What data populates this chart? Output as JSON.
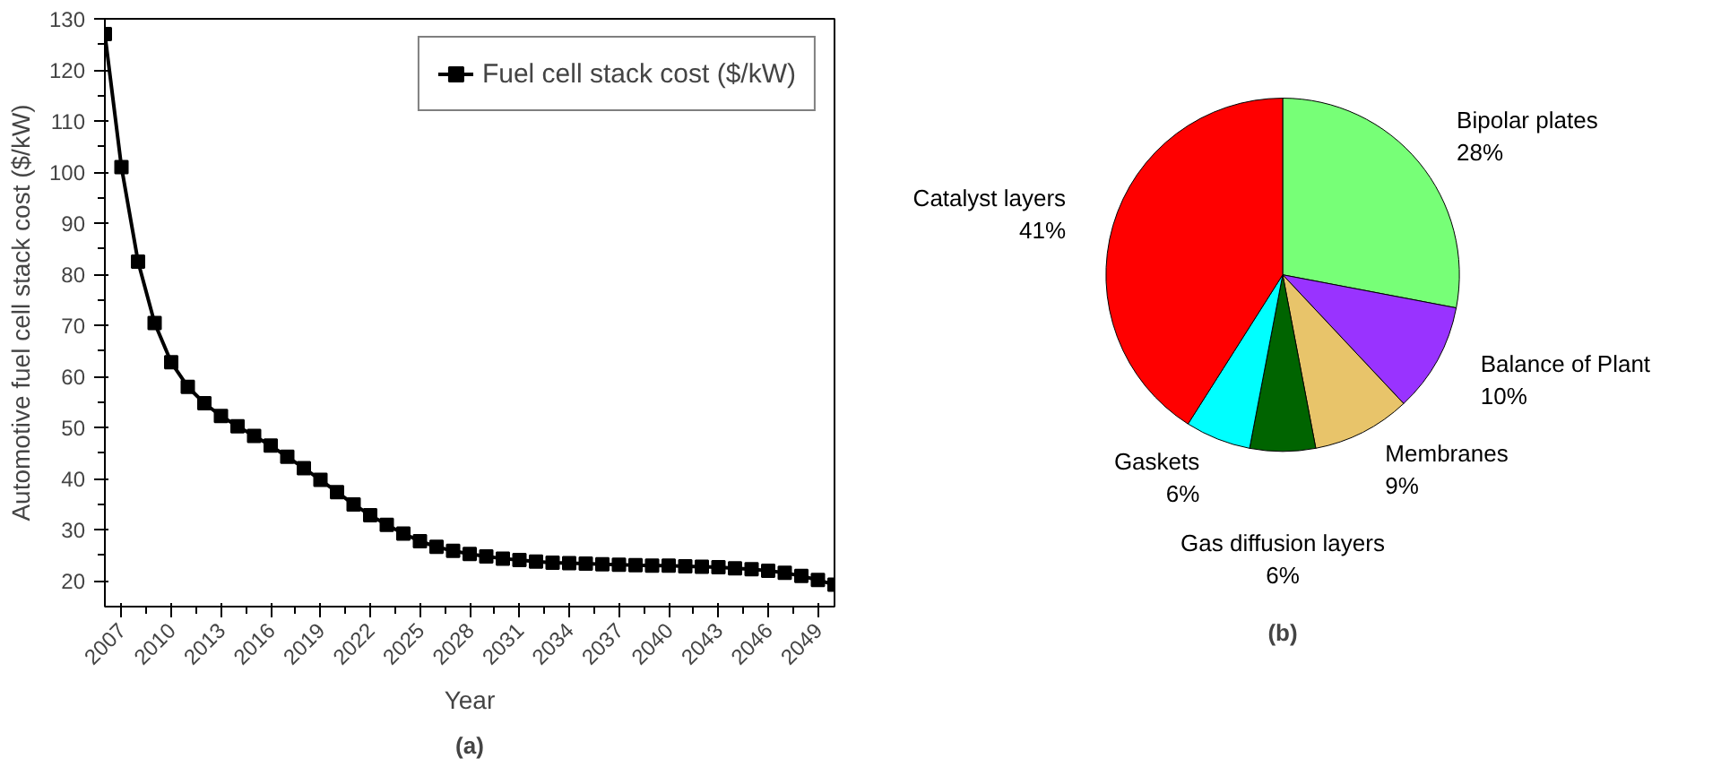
{
  "chart_data": [
    {
      "type": "line",
      "xlabel": "Year",
      "ylabel": "Automotive fuel cell stack cost ($/kW)",
      "annotations": [
        "(a)"
      ],
      "x": [
        2006,
        2007,
        2008,
        2009,
        2010,
        2011,
        2012,
        2013,
        2014,
        2015,
        2016,
        2017,
        2018,
        2019,
        2020,
        2021,
        2022,
        2023,
        2024,
        2025,
        2026,
        2027,
        2028,
        2029,
        2030,
        2031,
        2032,
        2033,
        2034,
        2035,
        2036,
        2037,
        2038,
        2039,
        2040,
        2041,
        2042,
        2043,
        2044,
        2045,
        2046,
        2047,
        2048,
        2049,
        2050
      ],
      "series": [
        {
          "name": "Fuel cell stack cost ($/kW)",
          "color": "#000000",
          "values": [
            127,
            101,
            82.5,
            70.5,
            62.8,
            58,
            54.8,
            52.3,
            50.3,
            48.4,
            46.5,
            44.3,
            42.1,
            39.8,
            37.4,
            35,
            32.9,
            31,
            29.3,
            27.8,
            26.7,
            25.9,
            25.3,
            24.8,
            24.4,
            24.1,
            23.8,
            23.6,
            23.5,
            23.4,
            23.3,
            23.2,
            23.1,
            23,
            23,
            22.9,
            22.8,
            22.7,
            22.5,
            22.3,
            22,
            21.6,
            21,
            20.2,
            19.3
          ]
        }
      ],
      "xlim": [
        2006,
        2050
      ],
      "ylim": [
        15,
        130
      ],
      "xticks": [
        2007,
        2010,
        2013,
        2016,
        2019,
        2022,
        2025,
        2028,
        2031,
        2034,
        2037,
        2040,
        2043,
        2046,
        2049
      ],
      "yticks": [
        20,
        30,
        40,
        50,
        60,
        70,
        80,
        90,
        100,
        110,
        120,
        130
      ],
      "grid": false,
      "legend": "top right",
      "marker": "square",
      "line_style": "solid"
    },
    {
      "type": "pie",
      "annotations": [
        "(b)"
      ],
      "categories": [
        "Bipolar plates",
        "Balance of Plant",
        "Membranes",
        "Gas diffusion layers",
        "Gaskets",
        "Catalyst layers"
      ],
      "values": [
        28,
        10,
        9,
        6,
        6,
        41
      ],
      "colors": [
        "#77ff77",
        "#9933ff",
        "#e8c46a",
        "#006400",
        "#00ffff",
        "#ff0000"
      ],
      "value_labels": [
        "28%",
        "10%",
        "9%",
        "6%",
        "6%",
        "41%"
      ]
    }
  ]
}
